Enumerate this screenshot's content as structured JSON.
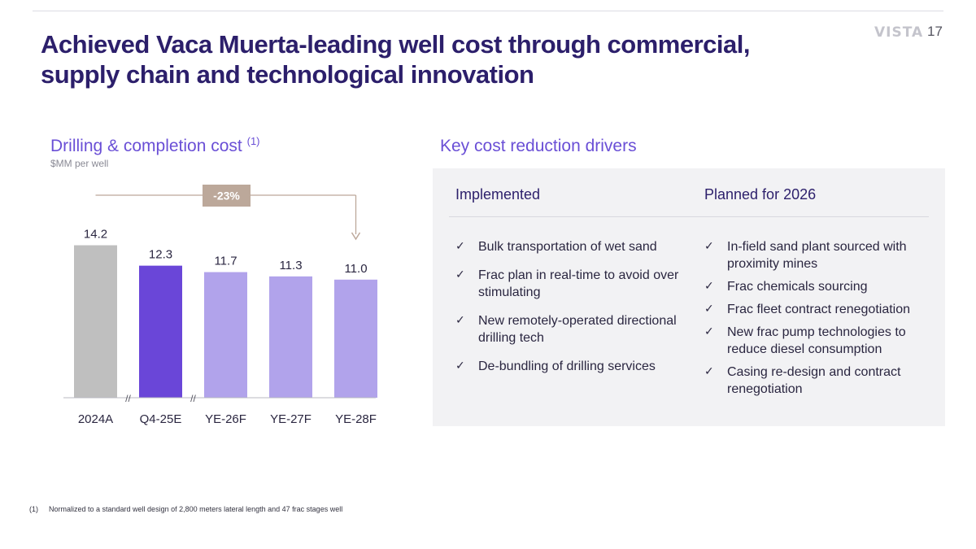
{
  "header": {
    "brand": "VISTA",
    "page_number": "17"
  },
  "title": "Achieved Vaca Muerta-leading well cost through commercial, supply chain and technological innovation",
  "left": {
    "heading": "Drilling & completion cost",
    "heading_sup": "(1)",
    "subheading": "$MM per well"
  },
  "chart_data": {
    "type": "bar",
    "categories": [
      "2024A",
      "Q4-25E",
      "YE-26F",
      "YE-27F",
      "YE-28F"
    ],
    "values": [
      14.2,
      12.3,
      11.7,
      11.3,
      11.0
    ],
    "value_labels": [
      "14.2",
      "12.3",
      "11.7",
      "11.3",
      "11.0"
    ],
    "colors": [
      "#bfbfbf",
      "#6a46d8",
      "#b1a3eb",
      "#b1a3eb",
      "#b1a3eb"
    ],
    "annotation": {
      "label": "-23%",
      "from_category": "2024A",
      "to_category": "YE-28F",
      "color": "#bca89a"
    },
    "axis_break_marks": [
      "//",
      "//"
    ],
    "xlabel": "",
    "ylabel": "",
    "grid": false
  },
  "right": {
    "heading": "Key cost reduction drivers",
    "implemented": {
      "title": "Implemented",
      "items": [
        "Bulk transportation of wet sand",
        "Frac plan in real-time to avoid over stimulating",
        "New remotely-operated directional drilling tech",
        "De-bundling of drilling services"
      ]
    },
    "planned": {
      "title": "Planned for 2026",
      "items": [
        "In-field sand plant sourced with proximity mines",
        "Frac chemicals sourcing",
        "Frac fleet contract renegotiation",
        "New frac pump technologies to reduce diesel consumption",
        "Casing re-design and contract renegotiation"
      ]
    },
    "check_glyph": "✓"
  },
  "footnote": {
    "mark": "(1)",
    "text": "Normalized to a standard well design of 2,800 meters lateral length and 47 frac stages well"
  }
}
